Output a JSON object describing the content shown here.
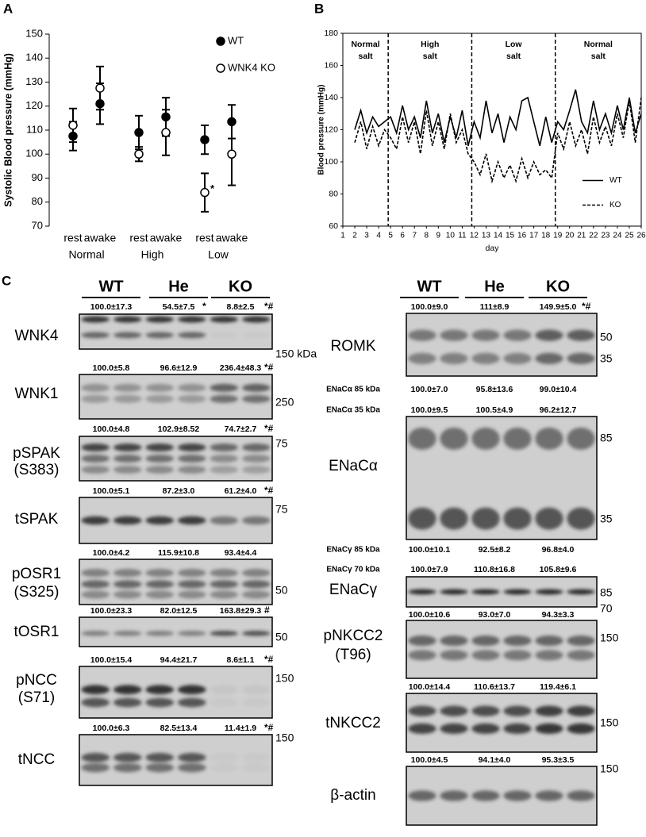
{
  "chart_data": [
    {
      "type": "errorbar",
      "panel_label": "A",
      "ylabel": "Systolic Blood pressure (mmHg)",
      "categories": [
        "rest",
        "awake",
        "rest",
        "awake",
        "rest",
        "awake"
      ],
      "groups": [
        "Normal",
        "High",
        "Low"
      ],
      "series": [
        {
          "name": "WT",
          "color": "#000000",
          "marker": "filled",
          "values": [
            107.5,
            121,
            109,
            115.5,
            106,
            113.5
          ],
          "errors": [
            6,
            8.5,
            7,
            8,
            6,
            7
          ]
        },
        {
          "name": "WNK4 KO",
          "color": "#000000",
          "marker": "open",
          "values": [
            112,
            127.5,
            100,
            109,
            84,
            100
          ],
          "errors": [
            7,
            9,
            3,
            9.5,
            8,
            13
          ]
        }
      ],
      "annotation": "*",
      "ylim": [
        70,
        150
      ],
      "yticks": [
        70,
        80,
        90,
        100,
        110,
        120,
        130,
        140,
        150
      ],
      "legend": "upper right"
    },
    {
      "type": "line",
      "panel_label": "B",
      "ylabel": "Blood pressure (mmHg)",
      "xlabel": "day",
      "x": [
        2,
        2.5,
        3,
        3.5,
        4,
        4.5,
        5,
        5.5,
        6,
        6.5,
        7,
        7.5,
        8,
        8.5,
        9,
        9.5,
        10,
        10.5,
        11,
        11.5,
        12,
        12.5,
        13,
        13.5,
        14,
        14.5,
        15,
        15.5,
        16,
        16.5,
        17,
        17.5,
        18,
        18.5,
        19,
        19.5,
        20,
        20.5,
        21,
        21.5,
        22,
        22.5,
        23,
        23.5,
        24,
        24.5,
        25,
        25.5,
        26
      ],
      "series": [
        {
          "name": "WT",
          "color": "#000000",
          "line_style": "solid",
          "values": [
            120,
            132,
            118,
            128,
            122,
            125,
            128,
            118,
            135,
            120,
            128,
            115,
            138,
            118,
            130,
            112,
            128,
            115,
            132,
            110,
            125,
            115,
            138,
            118,
            130,
            112,
            128,
            120,
            138,
            140,
            125,
            110,
            128,
            112,
            125,
            120,
            132,
            145,
            125,
            118,
            138,
            120,
            130,
            118,
            135,
            120,
            140,
            118,
            130
          ]
        },
        {
          "name": "KO",
          "color": "#000000",
          "line_style": "dashed",
          "values": [
            112,
            125,
            108,
            122,
            110,
            120,
            115,
            108,
            128,
            112,
            125,
            105,
            132,
            110,
            125,
            108,
            130,
            112,
            120,
            105,
            100,
            92,
            105,
            88,
            100,
            90,
            98,
            88,
            102,
            90,
            100,
            92,
            95,
            90,
            118,
            108,
            125,
            110,
            120,
            105,
            128,
            112,
            122,
            110,
            130,
            115,
            138,
            112,
            140
          ]
        }
      ],
      "phases": [
        [
          "Normal",
          "salt"
        ],
        [
          "High",
          "salt"
        ],
        [
          "Low",
          "salt"
        ],
        [
          "Normal",
          "salt"
        ]
      ],
      "phase_boundaries": [
        4.8,
        11.8,
        18.8
      ],
      "xlim": [
        1,
        26
      ],
      "xticks": [
        1,
        2,
        3,
        4,
        5,
        6,
        7,
        8,
        9,
        10,
        11,
        12,
        13,
        14,
        15,
        16,
        17,
        18,
        19,
        20,
        21,
        22,
        23,
        24,
        25,
        26
      ],
      "ylim": [
        60,
        180
      ],
      "yticks": [
        60,
        80,
        100,
        120,
        140,
        160,
        180
      ],
      "legend": "right"
    }
  ],
  "panel_c": {
    "panel_label": "C",
    "left": {
      "groups": [
        "WT",
        "He",
        "KO"
      ],
      "rows": [
        {
          "lines": [
            "WNK4"
          ],
          "stats": [
            {
              "values": [
                "100.0±17.3",
                "54.5±7.5",
                "8.8±2.5"
              ],
              "sig": [
                null,
                "*",
                "*#"
              ]
            }
          ],
          "markers": [
            "150 kDa"
          ]
        },
        {
          "lines": [
            "WNK1"
          ],
          "stats": [
            {
              "values": [
                "100.0±5.8",
                "96.6±12.9",
                "236.4±48.3"
              ],
              "sig": [
                null,
                null,
                "*#"
              ]
            }
          ],
          "markers": [
            "250"
          ]
        },
        {
          "lines": [
            "pSPAK",
            "(S383)"
          ],
          "stats": [
            {
              "values": [
                "100.0±4.8",
                "102.9±8.52",
                "74.7±2.7"
              ],
              "sig": [
                null,
                null,
                "*#"
              ]
            }
          ],
          "markers": [
            "75"
          ]
        },
        {
          "lines": [
            "tSPAK"
          ],
          "stats": [
            {
              "values": [
                "100.0±5.1",
                "87.2±3.0",
                "61.2±4.0"
              ],
              "sig": [
                null,
                null,
                "*#"
              ]
            }
          ],
          "markers": [
            "75"
          ]
        },
        {
          "lines": [
            "pOSR1",
            "(S325)"
          ],
          "stats": [
            {
              "values": [
                "100.0±4.2",
                "115.9±10.8",
                "93.4±4.4"
              ],
              "sig": [
                null,
                null,
                null
              ]
            }
          ],
          "markers": [
            "50"
          ]
        },
        {
          "lines": [
            "tOSR1"
          ],
          "stats": [
            {
              "values": [
                "100.0±23.3",
                "82.0±12.5",
                "163.8±29.3"
              ],
              "sig": [
                null,
                null,
                "#"
              ]
            }
          ],
          "markers": [
            "50"
          ]
        },
        {
          "lines": [
            "pNCC",
            "(S71)"
          ],
          "stats": [
            {
              "values": [
                "100.0±15.4",
                "94.4±21.7",
                "8.6±1.1"
              ],
              "sig": [
                null,
                null,
                "*#"
              ]
            }
          ],
          "markers": [
            "150"
          ]
        },
        {
          "lines": [
            "tNCC"
          ],
          "stats": [
            {
              "values": [
                "100.0±6.3",
                "82.5±13.4",
                "11.4±1.9"
              ],
              "sig": [
                null,
                null,
                "*#"
              ]
            }
          ],
          "markers": [
            "150"
          ]
        }
      ]
    },
    "right": {
      "groups": [
        "WT",
        "He",
        "KO"
      ],
      "rows": [
        {
          "lines": [
            "ROMK"
          ],
          "stats": [
            {
              "values": [
                "100.0±9.0",
                "111±8.9",
                "149.9±5.0"
              ],
              "sig": [
                null,
                null,
                "*#"
              ]
            }
          ],
          "markers": [
            "50",
            "35"
          ]
        },
        {
          "lines": [
            "ENaCα"
          ],
          "stats": [
            {
              "name": "ENaCα 85 kDa",
              "values": [
                "100.0±7.0",
                "95.8±13.6",
                "99.0±10.4"
              ],
              "sig": [
                null,
                null,
                null
              ]
            },
            {
              "name": "ENaCα 35 kDa",
              "values": [
                "100.0±9.5",
                "100.5±4.9",
                "96.2±12.7"
              ],
              "sig": [
                null,
                null,
                null
              ]
            }
          ],
          "markers": [
            "85",
            "35"
          ]
        },
        {
          "lines": [
            "ENaCγ"
          ],
          "stats": [
            {
              "name": "ENaCγ 85 kDa",
              "values": [
                "100.0±10.1",
                "92.5±8.2",
                "96.8±4.0"
              ],
              "sig": [
                null,
                null,
                null
              ]
            },
            {
              "name": "ENaCγ 70 kDa",
              "values": [
                "100.0±7.9",
                "110.8±16.8",
                "105.8±9.6"
              ],
              "sig": [
                null,
                null,
                null
              ]
            }
          ],
          "markers": [
            "85",
            "70"
          ]
        },
        {
          "lines": [
            "pNKCC2",
            "(T96)"
          ],
          "stats": [
            {
              "values": [
                "100.0±10.6",
                "93.0±7.0",
                "94.3±3.3"
              ],
              "sig": [
                null,
                null,
                null
              ]
            }
          ],
          "markers": [
            "150"
          ]
        },
        {
          "lines": [
            "tNKCC2"
          ],
          "stats": [
            {
              "values": [
                "100.0±14.4",
                "110.6±13.7",
                "119.4±6.1"
              ],
              "sig": [
                null,
                null,
                null
              ]
            }
          ],
          "markers": [
            "150"
          ]
        },
        {
          "lines": [
            "β-actin"
          ],
          "stats": [
            {
              "values": [
                "100.0±4.5",
                "94.1±4.0",
                "95.3±3.5"
              ],
              "sig": [
                null,
                null,
                null
              ]
            }
          ],
          "markers": [
            "150"
          ]
        }
      ]
    }
  }
}
